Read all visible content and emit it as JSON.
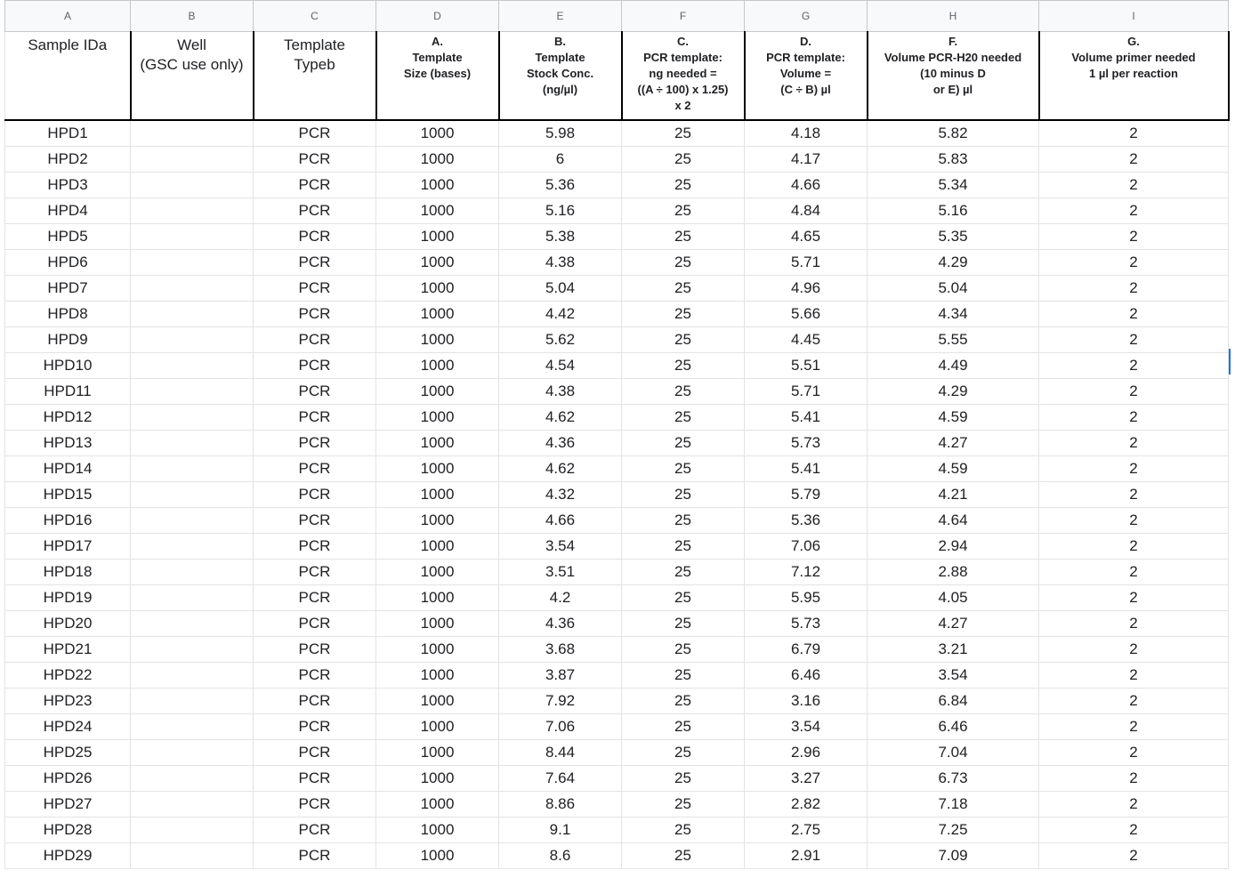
{
  "columns": [
    "A",
    "B",
    "C",
    "D",
    "E",
    "F",
    "G",
    "H",
    "I"
  ],
  "headers": {
    "a": {
      "l1": "Sample IDa"
    },
    "b": {
      "l1": "Well",
      "l2": "(GSC use only)"
    },
    "c": {
      "l1": "Template",
      "l2": "Typeb"
    },
    "d": {
      "l1": "A.",
      "l2": "Template",
      "l3": "Size (bases)"
    },
    "e": {
      "l1": "B.",
      "l2": "Template",
      "l3": "Stock Conc.",
      "l4": "(ng/µl)"
    },
    "f": {
      "l1": "C.",
      "l2": "PCR template:",
      "l3": "ng needed =",
      "l4": "((A ÷ 100) x 1.25)",
      "l5": "x 2"
    },
    "g": {
      "l1": "D.",
      "l2": "PCR template:",
      "l3": "Volume =",
      "l4": "(C ÷ B) µl"
    },
    "h": {
      "l1": "F.",
      "l2": "Volume PCR-H20 needed",
      "l3": "(10 minus D",
      "l4": "or E) µl"
    },
    "i": {
      "l1": "G.",
      "l2": "Volume primer needed",
      "l3": "1  µl per reaction"
    }
  },
  "rows": [
    [
      "HPD1",
      "",
      "PCR",
      "1000",
      "5.98",
      "25",
      "4.18",
      "5.82",
      "2"
    ],
    [
      "HPD2",
      "",
      "PCR",
      "1000",
      "6",
      "25",
      "4.17",
      "5.83",
      "2"
    ],
    [
      "HPD3",
      "",
      "PCR",
      "1000",
      "5.36",
      "25",
      "4.66",
      "5.34",
      "2"
    ],
    [
      "HPD4",
      "",
      "PCR",
      "1000",
      "5.16",
      "25",
      "4.84",
      "5.16",
      "2"
    ],
    [
      "HPD5",
      "",
      "PCR",
      "1000",
      "5.38",
      "25",
      "4.65",
      "5.35",
      "2"
    ],
    [
      "HPD6",
      "",
      "PCR",
      "1000",
      "4.38",
      "25",
      "5.71",
      "4.29",
      "2"
    ],
    [
      "HPD7",
      "",
      "PCR",
      "1000",
      "5.04",
      "25",
      "4.96",
      "5.04",
      "2"
    ],
    [
      "HPD8",
      "",
      "PCR",
      "1000",
      "4.42",
      "25",
      "5.66",
      "4.34",
      "2"
    ],
    [
      "HPD9",
      "",
      "PCR",
      "1000",
      "5.62",
      "25",
      "4.45",
      "5.55",
      "2"
    ],
    [
      "HPD10",
      "",
      "PCR",
      "1000",
      "4.54",
      "25",
      "5.51",
      "4.49",
      "2"
    ],
    [
      "HPD11",
      "",
      "PCR",
      "1000",
      "4.38",
      "25",
      "5.71",
      "4.29",
      "2"
    ],
    [
      "HPD12",
      "",
      "PCR",
      "1000",
      "4.62",
      "25",
      "5.41",
      "4.59",
      "2"
    ],
    [
      "HPD13",
      "",
      "PCR",
      "1000",
      "4.36",
      "25",
      "5.73",
      "4.27",
      "2"
    ],
    [
      "HPD14",
      "",
      "PCR",
      "1000",
      "4.62",
      "25",
      "5.41",
      "4.59",
      "2"
    ],
    [
      "HPD15",
      "",
      "PCR",
      "1000",
      "4.32",
      "25",
      "5.79",
      "4.21",
      "2"
    ],
    [
      "HPD16",
      "",
      "PCR",
      "1000",
      "4.66",
      "25",
      "5.36",
      "4.64",
      "2"
    ],
    [
      "HPD17",
      "",
      "PCR",
      "1000",
      "3.54",
      "25",
      "7.06",
      "2.94",
      "2"
    ],
    [
      "HPD18",
      "",
      "PCR",
      "1000",
      "3.51",
      "25",
      "7.12",
      "2.88",
      "2"
    ],
    [
      "HPD19",
      "",
      "PCR",
      "1000",
      "4.2",
      "25",
      "5.95",
      "4.05",
      "2"
    ],
    [
      "HPD20",
      "",
      "PCR",
      "1000",
      "4.36",
      "25",
      "5.73",
      "4.27",
      "2"
    ],
    [
      "HPD21",
      "",
      "PCR",
      "1000",
      "3.68",
      "25",
      "6.79",
      "3.21",
      "2"
    ],
    [
      "HPD22",
      "",
      "PCR",
      "1000",
      "3.87",
      "25",
      "6.46",
      "3.54",
      "2"
    ],
    [
      "HPD23",
      "",
      "PCR",
      "1000",
      "7.92",
      "25",
      "3.16",
      "6.84",
      "2"
    ],
    [
      "HPD24",
      "",
      "PCR",
      "1000",
      "7.06",
      "25",
      "3.54",
      "6.46",
      "2"
    ],
    [
      "HPD25",
      "",
      "PCR",
      "1000",
      "8.44",
      "25",
      "2.96",
      "7.04",
      "2"
    ],
    [
      "HPD26",
      "",
      "PCR",
      "1000",
      "7.64",
      "25",
      "3.27",
      "6.73",
      "2"
    ],
    [
      "HPD27",
      "",
      "PCR",
      "1000",
      "8.86",
      "25",
      "2.82",
      "7.18",
      "2"
    ],
    [
      "HPD28",
      "",
      "PCR",
      "1000",
      "9.1",
      "25",
      "2.75",
      "7.25",
      "2"
    ],
    [
      "HPD29",
      "",
      "PCR",
      "1000",
      "8.6",
      "25",
      "2.91",
      "7.09",
      "2"
    ]
  ]
}
